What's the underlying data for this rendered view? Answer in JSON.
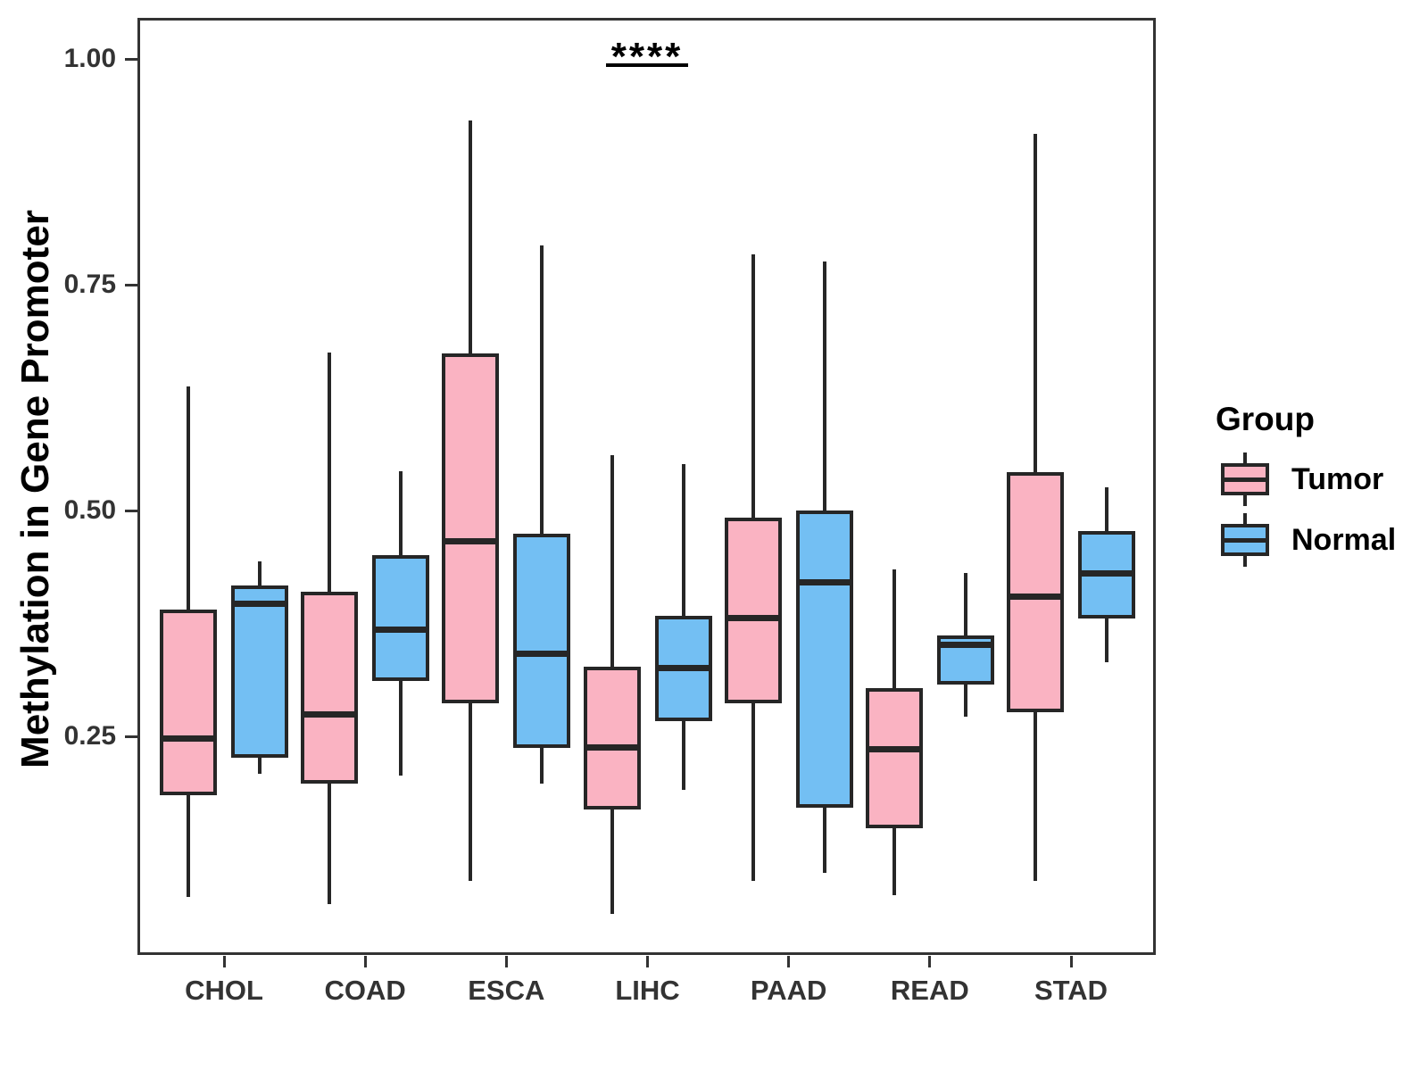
{
  "figure": {
    "legend_title": "Group",
    "significance": {
      "label": "****",
      "over_category": "LIHC"
    }
  },
  "chart_data": {
    "type": "boxplot",
    "title": "",
    "xlabel": "",
    "ylabel": "Methylation in Gene Promoter",
    "categories": [
      "CHOL",
      "COAD",
      "ESCA",
      "LIHC",
      "PAAD",
      "READ",
      "STAD"
    ],
    "yticks": [
      1.0,
      0.75,
      0.5,
      0.25
    ],
    "ytick_labels": [
      "1.00",
      "0.75",
      "0.50",
      "0.25"
    ],
    "ylim": [
      0.01,
      1.04
    ],
    "grid": false,
    "legend_position": "right",
    "annotation": {
      "label": "****",
      "category": "LIHC",
      "significance_line": true
    },
    "series": [
      {
        "name": "Tumor",
        "color": "#FAB3C2",
        "boxes": [
          {
            "category": "CHOL",
            "min": 0.072,
            "q1": 0.185,
            "median": 0.248,
            "q3": 0.39,
            "max": 0.637
          },
          {
            "category": "COAD",
            "min": 0.064,
            "q1": 0.198,
            "median": 0.274,
            "q3": 0.41,
            "max": 0.675
          },
          {
            "category": "ESCA",
            "min": 0.09,
            "q1": 0.287,
            "median": 0.466,
            "q3": 0.674,
            "max": 0.932
          },
          {
            "category": "LIHC",
            "min": 0.053,
            "q1": 0.169,
            "median": 0.238,
            "q3": 0.327,
            "max": 0.561
          },
          {
            "category": "PAAD",
            "min": 0.09,
            "q1": 0.287,
            "median": 0.381,
            "q3": 0.492,
            "max": 0.784
          },
          {
            "category": "READ",
            "min": 0.074,
            "q1": 0.148,
            "median": 0.236,
            "q3": 0.303,
            "max": 0.435
          },
          {
            "category": "STAD",
            "min": 0.09,
            "q1": 0.277,
            "median": 0.405,
            "q3": 0.542,
            "max": 0.917
          }
        ]
      },
      {
        "name": "Normal",
        "color": "#73BFF3",
        "boxes": [
          {
            "category": "CHOL",
            "min": 0.208,
            "q1": 0.226,
            "median": 0.397,
            "q3": 0.417,
            "max": 0.444
          },
          {
            "category": "COAD",
            "min": 0.207,
            "q1": 0.311,
            "median": 0.368,
            "q3": 0.451,
            "max": 0.543
          },
          {
            "category": "ESCA",
            "min": 0.198,
            "q1": 0.237,
            "median": 0.341,
            "q3": 0.474,
            "max": 0.793
          },
          {
            "category": "LIHC",
            "min": 0.191,
            "q1": 0.267,
            "median": 0.326,
            "q3": 0.383,
            "max": 0.551
          },
          {
            "category": "PAAD",
            "min": 0.099,
            "q1": 0.171,
            "median": 0.42,
            "q3": 0.5,
            "max": 0.776
          },
          {
            "category": "READ",
            "min": 0.272,
            "q1": 0.307,
            "median": 0.351,
            "q3": 0.362,
            "max": 0.431
          },
          {
            "category": "STAD",
            "min": 0.332,
            "q1": 0.38,
            "median": 0.43,
            "q3": 0.477,
            "max": 0.526
          }
        ]
      }
    ],
    "style": {
      "box_border_color": "#262626",
      "axis_color": "#333333",
      "tumor_fill": "#FAB3C2",
      "normal_fill": "#73BFF3"
    }
  }
}
